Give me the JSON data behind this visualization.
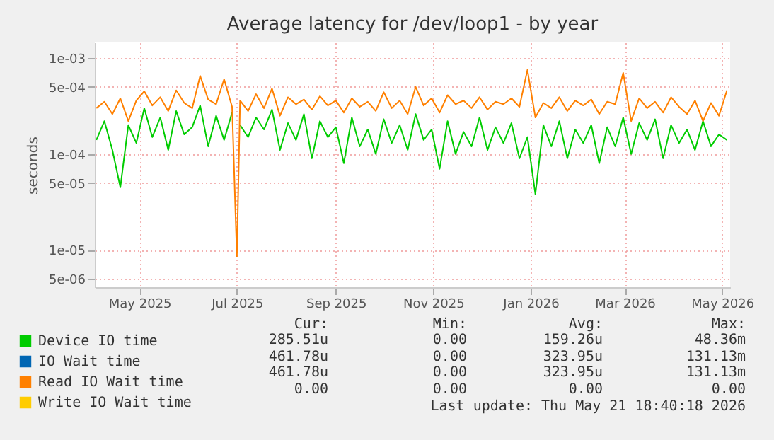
{
  "chart_data": {
    "type": "line",
    "title": "Average latency for /dev/loop1 - by year",
    "ylabel": "seconds",
    "log": "y",
    "grid": true,
    "legend": "bottom left",
    "marker": "none",
    "line_style": "solid",
    "xlim": [
      "2025-04-03",
      "2026-05-06"
    ],
    "xticks": [
      {
        "value": "2025-05-01",
        "label": "May 2025"
      },
      {
        "value": "2025-07-01",
        "label": "Jul 2025"
      },
      {
        "value": "2025-09-01",
        "label": "Sep 2025"
      },
      {
        "value": "2025-11-01",
        "label": "Nov 2025"
      },
      {
        "value": "2026-01-01",
        "label": "Jan 2026"
      },
      {
        "value": "2026-03-01",
        "label": "Mar 2026"
      },
      {
        "value": "2026-05-01",
        "label": "May 2026"
      }
    ],
    "ylim": [
      4.1e-06,
      0.00145
    ],
    "yticks": [
      {
        "value": 5e-06,
        "label": "5e-06"
      },
      {
        "value": 1e-05,
        "label": "1e-05"
      },
      {
        "value": 5e-05,
        "label": "5e-05"
      },
      {
        "value": 0.0001,
        "label": "1e-04"
      },
      {
        "value": 0.0005,
        "label": "5e-04"
      },
      {
        "value": 0.001,
        "label": "1e-03"
      }
    ],
    "x": [
      "2025-04-04",
      "2025-04-09",
      "2025-04-14",
      "2025-04-19",
      "2025-04-24",
      "2025-04-29",
      "2025-05-04",
      "2025-05-09",
      "2025-05-14",
      "2025-05-19",
      "2025-05-24",
      "2025-05-29",
      "2025-06-03",
      "2025-06-08",
      "2025-06-13",
      "2025-06-18",
      "2025-06-23",
      "2025-06-28",
      "2025-07-01",
      "2025-07-03",
      "2025-07-08",
      "2025-07-13",
      "2025-07-18",
      "2025-07-23",
      "2025-07-28",
      "2025-08-02",
      "2025-08-07",
      "2025-08-12",
      "2025-08-17",
      "2025-08-22",
      "2025-08-27",
      "2025-09-01",
      "2025-09-06",
      "2025-09-11",
      "2025-09-16",
      "2025-09-21",
      "2025-09-26",
      "2025-10-01",
      "2025-10-06",
      "2025-10-11",
      "2025-10-16",
      "2025-10-21",
      "2025-10-26",
      "2025-10-31",
      "2025-11-05",
      "2025-11-10",
      "2025-11-15",
      "2025-11-20",
      "2025-11-25",
      "2025-11-30",
      "2025-12-05",
      "2025-12-10",
      "2025-12-15",
      "2025-12-20",
      "2025-12-25",
      "2025-12-30",
      "2026-01-04",
      "2026-01-09",
      "2026-01-14",
      "2026-01-19",
      "2026-01-24",
      "2026-01-29",
      "2026-02-03",
      "2026-02-08",
      "2026-02-13",
      "2026-02-18",
      "2026-02-23",
      "2026-02-28",
      "2026-03-05",
      "2026-03-10",
      "2026-03-15",
      "2026-03-20",
      "2026-03-25",
      "2026-03-30",
      "2026-04-04",
      "2026-04-09",
      "2026-04-14",
      "2026-04-19",
      "2026-04-24",
      "2026-04-29",
      "2026-05-04"
    ],
    "series": [
      {
        "name": "Device IO time",
        "color": "#00cc00",
        "values": [
          0.00014,
          0.00022,
          0.00011,
          4.5e-05,
          0.0002,
          0.00013,
          0.0003,
          0.00015,
          0.00024,
          0.00011,
          0.00028,
          0.00016,
          0.00019,
          0.00032,
          0.00012,
          0.00025,
          0.00014,
          0.00027,
          null,
          0.0002,
          0.00015,
          0.00024,
          0.00018,
          0.00029,
          0.00011,
          0.00021,
          0.00014,
          0.00026,
          9e-05,
          0.00022,
          0.00015,
          0.00019,
          8e-05,
          0.00024,
          0.00012,
          0.00018,
          0.0001,
          0.00023,
          0.00013,
          0.0002,
          0.00011,
          0.00026,
          0.00014,
          0.00018,
          7e-05,
          0.00022,
          0.0001,
          0.00017,
          0.00012,
          0.00024,
          0.00011,
          0.00019,
          0.00013,
          0.00021,
          9e-05,
          0.00015,
          3.8e-05,
          0.0002,
          0.00012,
          0.00022,
          9e-05,
          0.00018,
          0.00013,
          0.0002,
          8e-05,
          0.00019,
          0.00012,
          0.00024,
          0.0001,
          0.00021,
          0.00014,
          0.00023,
          9e-05,
          0.0002,
          0.00013,
          0.00018,
          0.00011,
          0.00022,
          0.00012,
          0.00016,
          0.00014
        ]
      },
      {
        "name": "IO Wait time",
        "color": "#0066b3",
        "values": [
          null,
          null,
          null,
          null,
          null,
          null,
          null,
          null,
          null,
          null,
          null,
          null,
          null,
          null,
          null,
          null,
          null,
          null,
          null,
          null,
          null,
          null,
          null,
          null,
          null,
          null,
          null,
          null,
          null,
          null,
          null,
          null,
          null,
          null,
          null,
          null,
          null,
          null,
          null,
          null,
          null,
          null,
          null,
          null,
          null,
          null,
          null,
          null,
          null,
          null,
          null,
          null,
          null,
          null,
          null,
          null,
          null,
          null,
          null,
          null,
          null,
          null,
          null,
          null,
          null,
          null,
          null,
          null,
          null,
          null,
          null,
          null,
          null,
          null,
          null,
          null,
          null,
          null,
          null,
          null,
          null
        ]
      },
      {
        "name": "Read IO Wait time",
        "color": "#ff8000",
        "values": [
          0.0003,
          0.00035,
          0.00026,
          0.00038,
          0.00022,
          0.00036,
          0.00045,
          0.00032,
          0.00039,
          0.00028,
          0.00046,
          0.00034,
          0.0003,
          0.00065,
          0.00037,
          0.00033,
          0.0006,
          0.00031,
          8.5e-06,
          0.00036,
          0.00028,
          0.00042,
          0.0003,
          0.00048,
          0.00025,
          0.00039,
          0.00033,
          0.00037,
          0.00029,
          0.0004,
          0.00032,
          0.00036,
          0.00027,
          0.00038,
          0.00031,
          0.00035,
          0.00028,
          0.00044,
          0.0003,
          0.00036,
          0.00026,
          0.0005,
          0.00032,
          0.00038,
          0.00027,
          0.00041,
          0.00033,
          0.00036,
          0.0003,
          0.00039,
          0.00029,
          0.00035,
          0.00033,
          0.00038,
          0.00031,
          0.00075,
          0.00024,
          0.00034,
          0.0003,
          0.00039,
          0.00028,
          0.00036,
          0.00032,
          0.00037,
          0.00026,
          0.00035,
          0.00033,
          0.0007,
          0.00022,
          0.00038,
          0.0003,
          0.00035,
          0.00027,
          0.00039,
          0.00031,
          0.00026,
          0.00036,
          0.00022,
          0.00034,
          0.00025,
          0.00046
        ]
      },
      {
        "name": "Write IO Wait time",
        "color": "#ffcc00",
        "values": [
          null,
          null,
          null,
          null,
          null,
          null,
          null,
          null,
          null,
          null,
          null,
          null,
          null,
          null,
          null,
          null,
          null,
          null,
          null,
          null,
          null,
          null,
          null,
          null,
          null,
          null,
          null,
          null,
          null,
          null,
          null,
          null,
          null,
          null,
          null,
          null,
          null,
          null,
          null,
          null,
          null,
          null,
          null,
          null,
          null,
          null,
          null,
          null,
          null,
          null,
          null,
          null,
          null,
          null,
          null,
          null,
          null,
          null,
          null,
          null,
          null,
          null,
          null,
          null,
          null,
          null,
          null,
          null,
          null,
          null,
          null,
          null,
          null,
          null,
          null,
          null,
          null,
          null,
          null,
          null,
          null
        ]
      }
    ],
    "annotations": [
      "Cur:",
      "Min:",
      "Avg:",
      "Max:",
      "285.51u",
      "0.00",
      "159.26u",
      "48.36m",
      "461.78u",
      "0.00",
      "323.95u",
      "131.13m",
      "461.78u",
      "0.00",
      "323.95u",
      "131.13m",
      "0.00",
      "0.00",
      "0.00",
      "0.00",
      "Last update: Thu May 21 18:40:18 2026"
    ]
  }
}
